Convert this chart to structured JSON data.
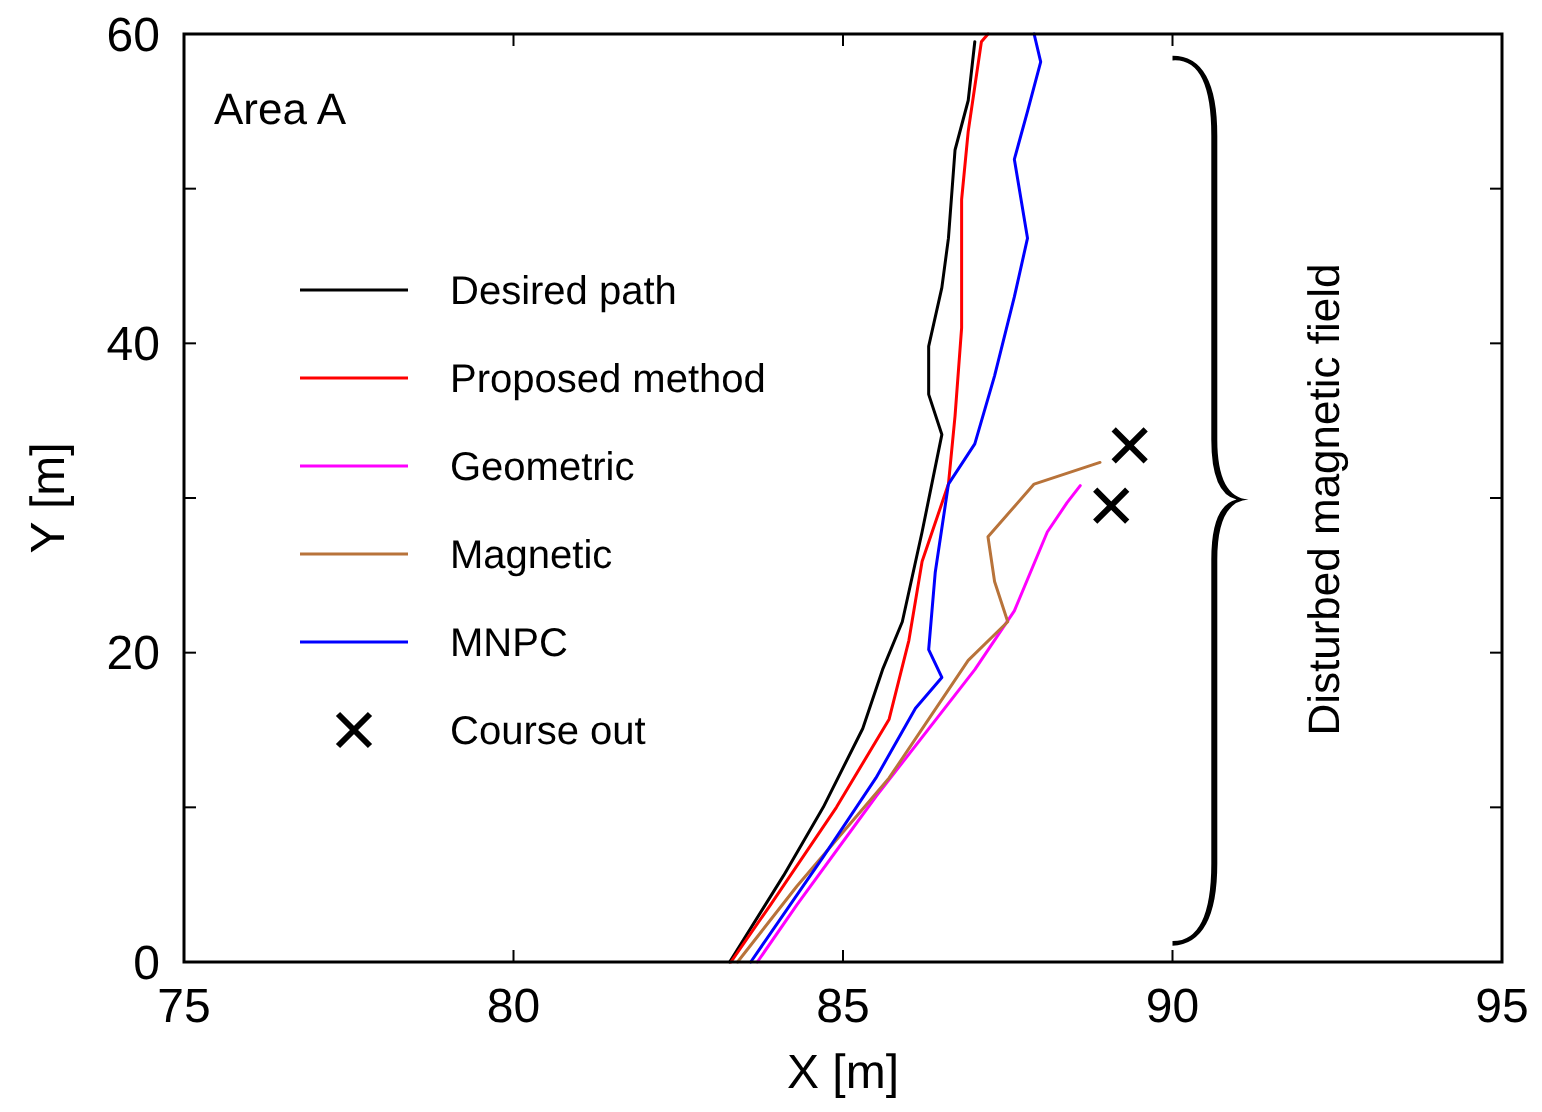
{
  "chart_data": {
    "type": "line",
    "xlabel": "X [m]",
    "ylabel": "Y [m]",
    "xlim": [
      75,
      95
    ],
    "ylim": [
      0,
      60
    ],
    "xticks": [
      75,
      80,
      85,
      90,
      95
    ],
    "yticks": [
      0,
      {
        "value": 10,
        "label": null
      },
      20,
      {
        "value": 30,
        "label": null
      },
      40,
      {
        "value": 50,
        "label": null
      },
      60
    ],
    "grid": false,
    "legend": "left",
    "marker": "none",
    "line_style": "solid",
    "annotations": [
      "Area A",
      "Disturbed magnetic field"
    ],
    "series": [
      {
        "name": "Desired path",
        "color": "#000000",
        "x": [
          83.28,
          84.1,
          84.7,
          85.3,
          85.6,
          85.9,
          86.2,
          86.5,
          86.3,
          86.3,
          86.5,
          86.6,
          86.7,
          86.9,
          87.0
        ],
        "values": [
          0,
          5.6,
          10,
          15.1,
          18.9,
          22,
          27.8,
          34.1,
          36.7,
          39.8,
          43.6,
          46.8,
          52.5,
          55.7,
          59.5
        ]
      },
      {
        "name": "Proposed method",
        "color": "#ff0000",
        "x": [
          83.3,
          83.9,
          84.9,
          85.7,
          86.0,
          86.2,
          86.6,
          86.7,
          86.8,
          86.8,
          86.9,
          87.1,
          87.2
        ],
        "values": [
          0,
          3.7,
          10,
          15.7,
          20.8,
          25.9,
          30.9,
          35.3,
          41,
          49.3,
          53.7,
          59.5,
          60
        ]
      },
      {
        "name": "Geometric",
        "color": "#ff00ff",
        "x": [
          83.7,
          84.3,
          85.5,
          87.0,
          87.6,
          88.1,
          88.4,
          88.6
        ],
        "values": [
          0,
          3.7,
          10.7,
          18.9,
          22.7,
          27.8,
          29.7,
          30.8
        ]
      },
      {
        "name": "Magnetic",
        "color": "#b8733a",
        "x": [
          83.4,
          84.3,
          85.7,
          86.9,
          87.5,
          87.3,
          87.2,
          87.9,
          88.9
        ],
        "values": [
          0,
          4.9,
          11.9,
          19.5,
          22,
          24.6,
          27.5,
          30.9,
          32.3
        ]
      },
      {
        "name": "MNPC",
        "color": "#0000ff",
        "x": [
          83.6,
          84.7,
          85.5,
          86.1,
          86.5,
          86.3,
          86.4,
          86.6,
          87.0,
          87.3,
          87.6,
          87.8,
          87.6,
          87.8,
          88.0,
          87.9
        ],
        "values": [
          0,
          6.8,
          11.9,
          16.4,
          18.4,
          20.2,
          25.2,
          30.9,
          33.5,
          37.9,
          43,
          46.8,
          51.9,
          55,
          58.2,
          60
        ]
      },
      {
        "name": "Course out",
        "type": "scatter",
        "marker": "cross",
        "color": "#000000",
        "x": [
          89.35,
          89.07
        ],
        "values": [
          33.4,
          29.5
        ]
      }
    ]
  }
}
